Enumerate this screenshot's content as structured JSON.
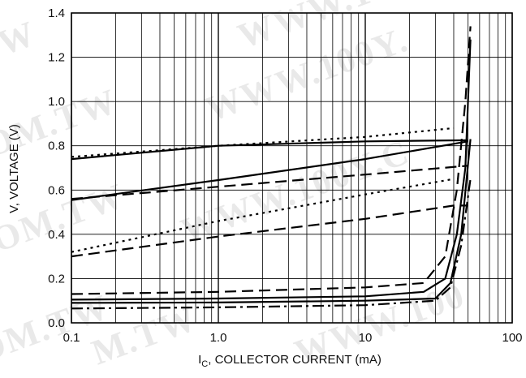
{
  "chart_data": {
    "type": "line",
    "title": "",
    "xlabel": "I_C, COLLECTOR CURRENT (mA)",
    "xlabel_main": "I",
    "xlabel_sub": "C",
    "xlabel_rest": ", COLLECTOR CURRENT (mA)",
    "ylabel": "V, VOLTAGE (V)",
    "x_scale": "log",
    "xlim": [
      0.1,
      100
    ],
    "ylim": [
      0.0,
      1.4
    ],
    "grid": true,
    "legend": "none",
    "x_ticks": [
      {
        "value": 0.1,
        "label": "0.1"
      },
      {
        "value": 1,
        "label": "1.0"
      },
      {
        "value": 10,
        "label": "10"
      },
      {
        "value": 100,
        "label": "100"
      }
    ],
    "y_ticks": [
      {
        "value": 0.0,
        "label": "0.0"
      },
      {
        "value": 0.2,
        "label": "0.2"
      },
      {
        "value": 0.4,
        "label": "0.4"
      },
      {
        "value": 0.6,
        "label": "0.6"
      },
      {
        "value": 0.8,
        "label": "0.8"
      },
      {
        "value": 1.0,
        "label": "1.0"
      },
      {
        "value": 1.2,
        "label": "1.2"
      },
      {
        "value": 1.4,
        "label": "1.4"
      }
    ],
    "series": [
      {
        "style": "dotted",
        "x": [
          0.1,
          1,
          10,
          40
        ],
        "y": [
          0.75,
          0.8,
          0.84,
          0.88
        ]
      },
      {
        "style": "solid",
        "x": [
          0.1,
          1,
          10,
          50
        ],
        "y": [
          0.74,
          0.8,
          0.82,
          0.825
        ]
      },
      {
        "style": "dashed",
        "x": [
          0.1,
          1,
          10,
          50
        ],
        "y": [
          0.56,
          0.615,
          0.67,
          0.71
        ]
      },
      {
        "style": "solid",
        "x": [
          0.1,
          1,
          10,
          50
        ],
        "y": [
          0.555,
          0.645,
          0.74,
          0.82
        ]
      },
      {
        "style": "dotted",
        "x": [
          0.1,
          1,
          10,
          40
        ],
        "y": [
          0.32,
          0.46,
          0.58,
          0.65
        ]
      },
      {
        "style": "dashed",
        "x": [
          0.1,
          1,
          10,
          40,
          50
        ],
        "y": [
          0.3,
          0.39,
          0.47,
          0.53,
          0.53
        ]
      },
      {
        "style": "dashed",
        "x": [
          0.1,
          1,
          10,
          25,
          35,
          42,
          48,
          52
        ],
        "y": [
          0.13,
          0.14,
          0.16,
          0.18,
          0.3,
          0.6,
          1.0,
          1.34
        ]
      },
      {
        "style": "solid",
        "x": [
          0.1,
          1,
          10,
          25,
          35,
          42,
          48,
          52
        ],
        "y": [
          0.105,
          0.11,
          0.12,
          0.14,
          0.2,
          0.4,
          0.7,
          1.28
        ]
      },
      {
        "style": "solid",
        "x": [
          0.1,
          1,
          10,
          30,
          38,
          45,
          52
        ],
        "y": [
          0.09,
          0.092,
          0.1,
          0.11,
          0.18,
          0.4,
          0.83
        ]
      },
      {
        "style": "dashdot",
        "x": [
          0.1,
          1,
          10,
          30,
          38,
          45,
          52
        ],
        "y": [
          0.065,
          0.07,
          0.08,
          0.1,
          0.16,
          0.35,
          0.65
        ]
      }
    ]
  }
}
